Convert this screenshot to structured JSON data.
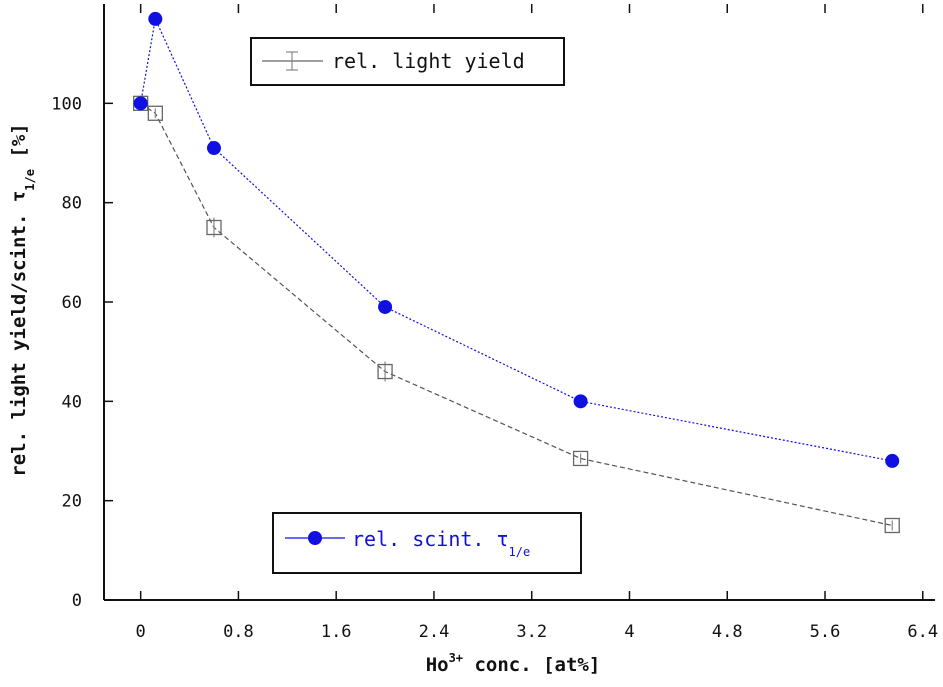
{
  "chart_data": {
    "type": "line",
    "x_axis": {
      "label_prefix": "Ho",
      "label_sup": "3+",
      "label_suffix": " conc. [at%]",
      "ticks": [
        "0",
        "0.8",
        "1.6",
        "2.4",
        "3.2",
        "4",
        "4.8",
        "5.6",
        "6.4"
      ],
      "tick_values": [
        0,
        0.8,
        1.6,
        2.4,
        3.2,
        4.0,
        4.8,
        5.6,
        6.4
      ],
      "range": [
        -0.3,
        6.5
      ]
    },
    "y_axis": {
      "label_main": "rel. light yield/scint. τ",
      "label_sub": "1/e",
      "label_suffix": " [%]",
      "ticks": [
        "0",
        "20",
        "40",
        "60",
        "80",
        "100"
      ],
      "tick_values": [
        0,
        20,
        40,
        60,
        80,
        100
      ],
      "range": [
        0,
        120
      ]
    },
    "grid": false,
    "series": [
      {
        "name": "rel. light yield",
        "color": "#555555",
        "marker": "open-square",
        "line_style": "dashed",
        "x": [
          0.0,
          0.12,
          0.6,
          2.0,
          3.6,
          6.15
        ],
        "y": [
          100,
          98,
          75,
          46,
          28.5,
          15
        ],
        "y_err": [
          1.0,
          1.0,
          2.0,
          2.0,
          1.0,
          1.0
        ]
      },
      {
        "name_main": "rel. scint. τ",
        "name_sub": "1/e",
        "color": "#1010e0",
        "marker": "filled-circle",
        "line_style": "dotted",
        "x": [
          0.0,
          0.12,
          0.6,
          2.0,
          3.6,
          6.15
        ],
        "y": [
          100,
          117,
          91,
          59,
          40,
          28
        ]
      }
    ],
    "legend_1": {
      "label": "rel. light yield",
      "placement": "top-center"
    },
    "legend_2": {
      "label_main": "rel. scint. τ",
      "label_sub": "1/e",
      "placement": "bottom-center"
    }
  }
}
